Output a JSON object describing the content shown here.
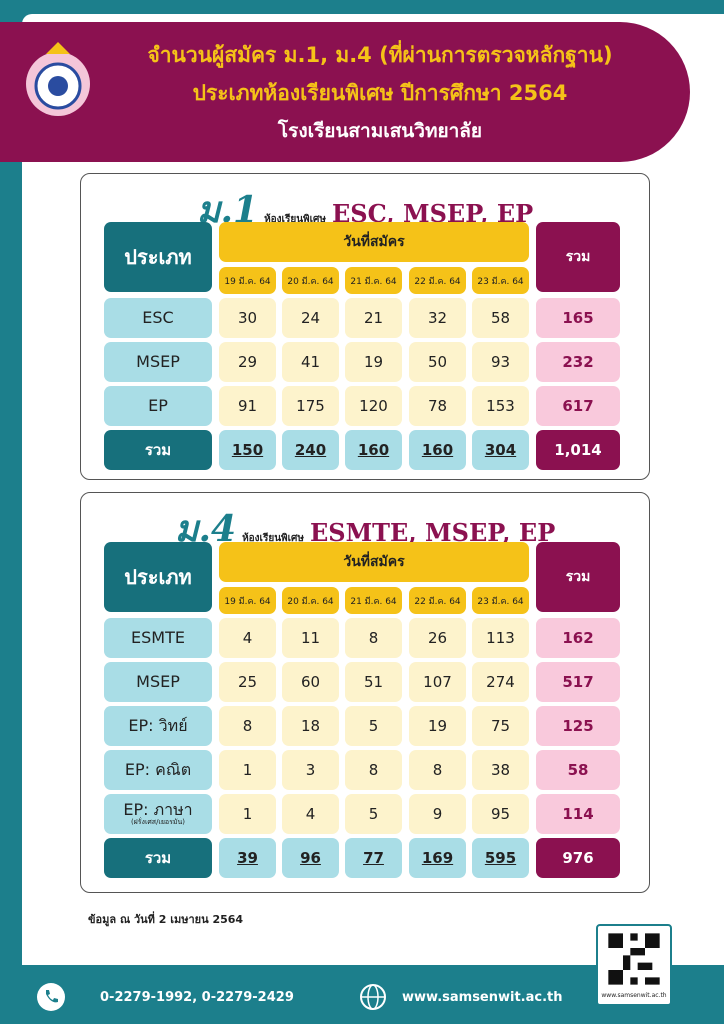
{
  "header": {
    "title_lines": [
      "จำนวนผู้สมัคร ม.1, ม.4 (ที่ผ่านการตรวจหลักฐาน)",
      "ประเภทห้องเรียนพิเศษ  ปีการศึกษา 2564",
      "โรงเรียนสามเสนวิทยาลัย"
    ]
  },
  "tables": [
    {
      "level": "ม.1",
      "subtitle": "ห้องเรียนพิเศษ",
      "programs": "ESC, MSEP, EP",
      "type_header": "ประเภท",
      "date_header": "วันที่สมัคร",
      "total_header": "รวม",
      "dates": [
        "19 มี.ค. 64",
        "20 มี.ค. 64",
        "21 มี.ค. 64",
        "22 มี.ค. 64",
        "23 มี.ค. 64"
      ],
      "rows": [
        {
          "label": "ESC",
          "values": [
            30,
            24,
            21,
            32,
            58
          ],
          "total": 165
        },
        {
          "label": "MSEP",
          "values": [
            29,
            41,
            19,
            50,
            93
          ],
          "total": 232
        },
        {
          "label": "EP",
          "values": [
            91,
            175,
            120,
            78,
            153
          ],
          "total": 617
        }
      ],
      "total_row": {
        "label": "รวม",
        "values": [
          150,
          240,
          160,
          160,
          304
        ],
        "total": "1,014"
      }
    },
    {
      "level": "ม.4",
      "subtitle": "ห้องเรียนพิเศษ",
      "programs": "ESMTE, MSEP, EP",
      "type_header": "ประเภท",
      "date_header": "วันที่สมัคร",
      "total_header": "รวม",
      "dates": [
        "19 มี.ค. 64",
        "20 มี.ค. 64",
        "21 มี.ค. 64",
        "22 มี.ค. 64",
        "23 มี.ค. 64"
      ],
      "rows": [
        {
          "label": "ESMTE",
          "values": [
            4,
            11,
            8,
            26,
            113
          ],
          "total": 162
        },
        {
          "label": "MSEP",
          "values": [
            25,
            60,
            51,
            107,
            274
          ],
          "total": 517
        },
        {
          "label": "EP: วิทย์",
          "values": [
            8,
            18,
            5,
            19,
            75
          ],
          "total": 125
        },
        {
          "label": "EP: คณิต",
          "values": [
            1,
            3,
            8,
            8,
            38
          ],
          "total": 58
        },
        {
          "label": "EP: ภาษา",
          "sublabel": "(ฝรั่งเศส/เยอรมัน)",
          "values": [
            1,
            4,
            5,
            9,
            95
          ],
          "total": 114
        }
      ],
      "total_row": {
        "label": "รวม",
        "values": [
          39,
          96,
          77,
          169,
          595
        ],
        "total": 976
      }
    }
  ],
  "footer": {
    "note": "ข้อมูล ณ วันที่ 2 เมษายน 2564",
    "phone": "0-2279-1992, 0-2279-2429",
    "website": "www.samsenwit.ac.th",
    "qr_caption": "www.samsenwit.ac.th"
  }
}
